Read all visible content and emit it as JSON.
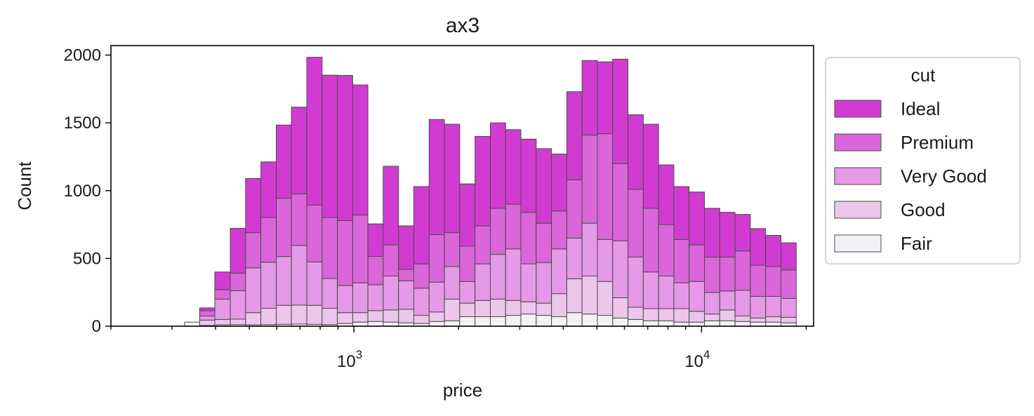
{
  "chart_data": {
    "type": "bar",
    "subtype": "stacked-histogram",
    "title": "ax3",
    "xlabel": "price",
    "ylabel": "Count",
    "xscale": "log",
    "xlim": [
      200,
      21000
    ],
    "ylim": [
      0,
      2070
    ],
    "grid": false,
    "x_ticks": [
      {
        "value": 1000,
        "base": "10",
        "exp": "3"
      },
      {
        "value": 10000,
        "base": "10",
        "exp": "4"
      }
    ],
    "y_ticks": [
      0,
      500,
      1000,
      1500,
      2000
    ],
    "legend": {
      "title": "cut",
      "placement": "outside-right"
    },
    "bin_edges": [
      326,
      360,
      398,
      441,
      488,
      540,
      598,
      661,
      732,
      810,
      896,
      992,
      1097,
      1214,
      1344,
      1487,
      1646,
      1821,
      2015,
      2230,
      2468,
      2731,
      3022,
      3345,
      3701,
      4096,
      4532,
      5016,
      5550,
      6142,
      6797,
      7522,
      8324,
      9211,
      10193,
      11280,
      12483,
      13814,
      15287,
      16917,
      18721
    ],
    "series": [
      {
        "name": "Fair",
        "color": "#f4f1f6",
        "values": [
          30,
          5,
          10,
          12,
          10,
          12,
          14,
          16,
          14,
          12,
          20,
          30,
          35,
          30,
          25,
          20,
          35,
          40,
          70,
          70,
          70,
          80,
          90,
          80,
          70,
          100,
          90,
          80,
          60,
          50,
          40,
          40,
          30,
          30,
          40,
          40,
          35,
          30,
          30,
          25
        ]
      },
      {
        "name": "Good",
        "color": "#ecc6eb",
        "values": [
          0,
          40,
          40,
          40,
          90,
          120,
          140,
          140,
          140,
          120,
          80,
          70,
          80,
          90,
          100,
          60,
          70,
          160,
          100,
          120,
          130,
          110,
          90,
          90,
          170,
          250,
          280,
          250,
          150,
          90,
          90,
          90,
          100,
          80,
          50,
          80,
          40,
          30,
          40,
          40
        ]
      },
      {
        "name": "Very Good",
        "color": "#e699e6",
        "values": [
          0,
          30,
          150,
          210,
          330,
          340,
          360,
          440,
          320,
          220,
          200,
          220,
          190,
          250,
          210,
          200,
          220,
          240,
          160,
          270,
          330,
          380,
          280,
          300,
          330,
          300,
          390,
          310,
          420,
          370,
          270,
          240,
          190,
          220,
          160,
          140,
          190,
          160,
          150,
          140
        ]
      },
      {
        "name": "Premium",
        "color": "#da66da",
        "values": [
          0,
          40,
          70,
          130,
          260,
          330,
          430,
          380,
          420,
          450,
          480,
          500,
          210,
          230,
          85,
          180,
          350,
          250,
          260,
          280,
          340,
          330,
          380,
          290,
          280,
          430,
          650,
          780,
          570,
          500,
          470,
          380,
          320,
          270,
          260,
          250,
          290,
          230,
          220,
          210
        ]
      },
      {
        "name": "Ideal",
        "color": "#d23bd2",
        "values": [
          0,
          20,
          130,
          330,
          400,
          410,
          540,
          640,
          1090,
          1050,
          1070,
          960,
          240,
          580,
          320,
          570,
          850,
          800,
          460,
          660,
          630,
          550,
          540,
          550,
          420,
          650,
          550,
          530,
          770,
          550,
          620,
          440,
          390,
          390,
          360,
          330,
          270,
          270,
          230,
          200
        ]
      }
    ]
  }
}
